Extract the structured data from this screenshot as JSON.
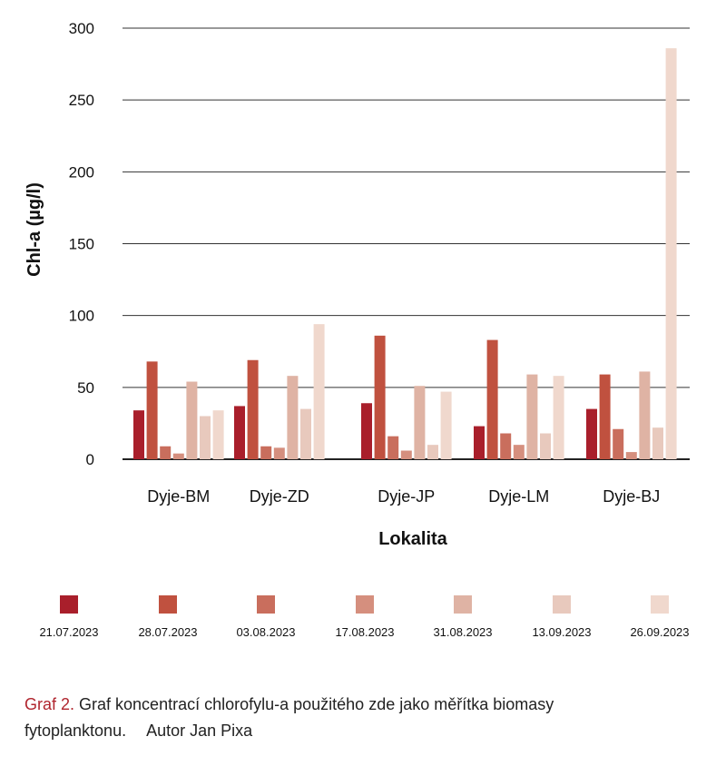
{
  "chart_data": {
    "type": "bar",
    "ylabel": "Chl-a (µg/l)",
    "xlabel": "Lokalita",
    "ylim": [
      0,
      300
    ],
    "yticks": [
      0,
      50,
      100,
      150,
      200,
      250,
      300
    ],
    "grid": true,
    "legend_position": "bottom",
    "categories": [
      "Dyje-BM",
      "Dyje-ZD",
      "Dyje-JP",
      "Dyje-LM",
      "Dyje-BJ"
    ],
    "series": [
      {
        "name": "21.07.2023",
        "color": "#a91f2b",
        "values": [
          34,
          37,
          39,
          23,
          35
        ]
      },
      {
        "name": "28.07.2023",
        "color": "#c0513f",
        "values": [
          68,
          69,
          86,
          83,
          59
        ]
      },
      {
        "name": "03.08.2023",
        "color": "#c96e5d",
        "values": [
          9,
          9,
          16,
          18,
          21
        ]
      },
      {
        "name": "17.08.2023",
        "color": "#d58f7e",
        "values": [
          4,
          8,
          6,
          10,
          5
        ]
      },
      {
        "name": "31.08.2023",
        "color": "#dfb3a4",
        "values": [
          54,
          58,
          51,
          59,
          61
        ]
      },
      {
        "name": "13.09.2023",
        "color": "#e8c9bd",
        "values": [
          30,
          35,
          10,
          18,
          22
        ]
      },
      {
        "name": "26.09.2023",
        "color": "#f0d8cd",
        "values": [
          34,
          94,
          47,
          58,
          286
        ]
      }
    ]
  },
  "caption": {
    "lead": "Graf 2.",
    "text": " Graf koncentrací chlorofylu-a použitého zde jako měřítka biomasy fytoplanktonu.",
    "author": "Autor Jan Pixa"
  }
}
